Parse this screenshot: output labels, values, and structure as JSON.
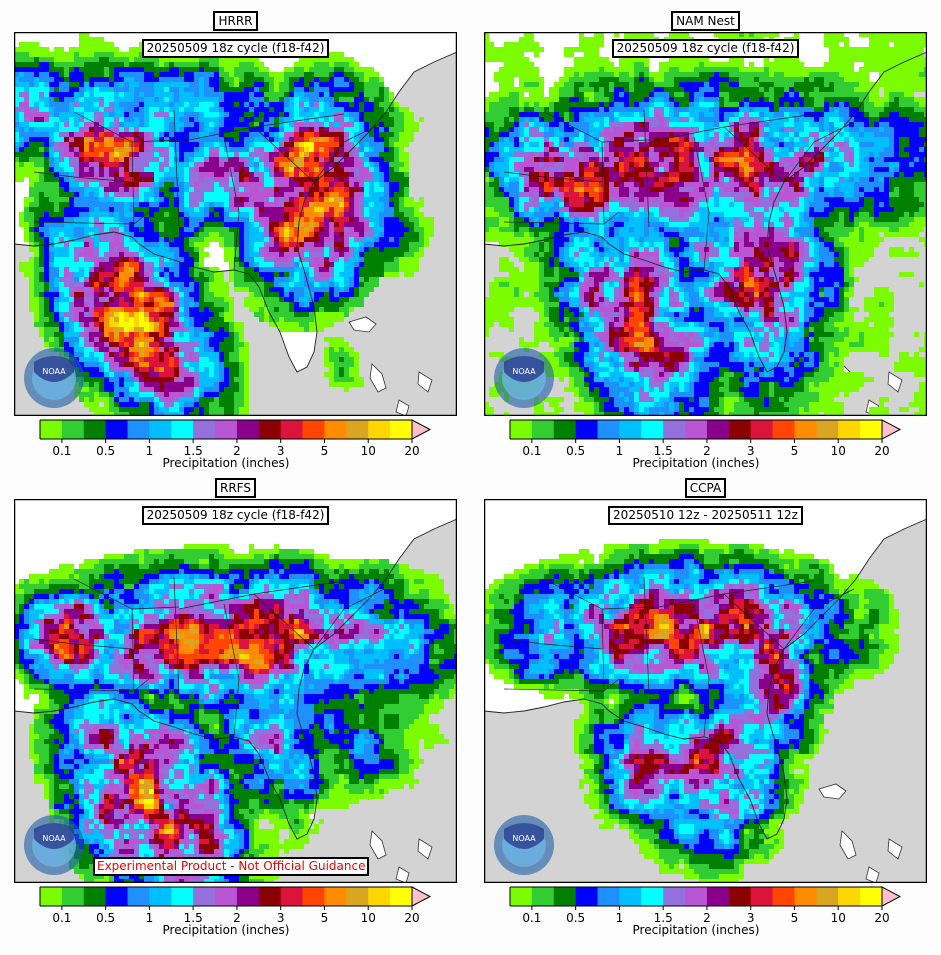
{
  "panels": [
    {
      "model": "HRRR",
      "cycle": "20250509 18z cycle (f18-f42)"
    },
    {
      "model": "NAM Nest",
      "cycle": "20250509 18z cycle (f18-f42)"
    },
    {
      "model": "RRFS",
      "cycle": "20250509 18z cycle (f18-f42)",
      "disclaimer": "Experimental Product - Not Official Guidance"
    },
    {
      "model": "CCPA",
      "cycle": "20250510 12z - 20250511 12z"
    }
  ],
  "colorbar": {
    "label": "Precipitation (inches)",
    "colors": [
      "#7cfc00",
      "#32cd32",
      "#008000",
      "#0000ff",
      "#1e90ff",
      "#00bfff",
      "#00ffff",
      "#9370db",
      "#ba55d3",
      "#8b008b",
      "#8b0000",
      "#dc143c",
      "#ff4500",
      "#ff8c00",
      "#daa520",
      "#ffd700",
      "#ffff00"
    ],
    "extend_color": "#ffc0cb",
    "tick_labels": [
      "0.1",
      "0.5",
      "1",
      "1.5",
      "2",
      "3",
      "5",
      "10",
      "20"
    ]
  },
  "chart_data": {
    "type": "heatmap",
    "variable": "Precipitation (inches)",
    "panels": [
      "HRRR",
      "NAM Nest",
      "RRFS",
      "CCPA"
    ],
    "levels": [
      0.01,
      0.1,
      0.25,
      0.5,
      0.75,
      1,
      1.25,
      1.5,
      1.75,
      2,
      2.5,
      3,
      4,
      5,
      7,
      10,
      15,
      20
    ],
    "tick_values": [
      0.1,
      0.5,
      1,
      1.5,
      2,
      3,
      5,
      10,
      20
    ]
  },
  "colors": {
    "ocean": "#d3d3d3",
    "land": "#ffffff",
    "border": "#000000"
  },
  "icons": [
    "noaa-logo"
  ]
}
